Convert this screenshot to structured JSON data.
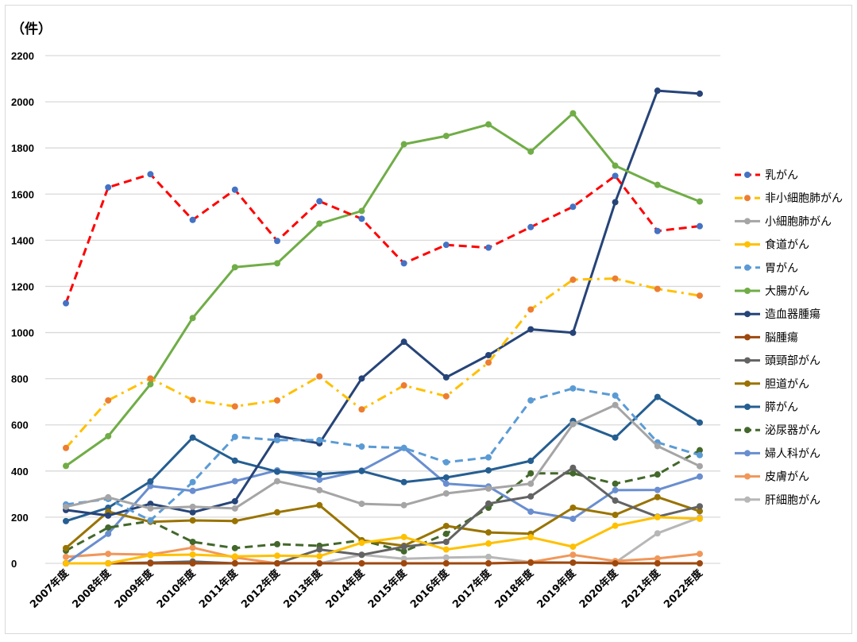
{
  "chart_data": {
    "type": "line",
    "title": "",
    "unit_label": "（件）",
    "xlabel": "",
    "ylabel": "件",
    "ylim": [
      0,
      2200
    ],
    "yticks": [
      0,
      200,
      400,
      600,
      800,
      1000,
      1200,
      1400,
      1600,
      1800,
      2000,
      2200
    ],
    "grid": true,
    "legend_position": "right",
    "categories": [
      "2007年度",
      "2008年度",
      "2009年度",
      "2010年度",
      "2011年度",
      "2012年度",
      "2013年度",
      "2014年度",
      "2015年度",
      "2016年度",
      "2017年度",
      "2018年度",
      "2019年度",
      "2020年度",
      "2021年度",
      "2022年度"
    ],
    "series": [
      {
        "name": "乳がん",
        "color": "#ff0000",
        "marker_color": "#4472c4",
        "dash": "dash",
        "values": [
          1127,
          1629,
          1686,
          1488,
          1619,
          1397,
          1569,
          1493,
          1300,
          1380,
          1368,
          1457,
          1545,
          1679,
          1440,
          1461
        ]
      },
      {
        "name": "非小細胞肺がん",
        "color": "#ffc000",
        "marker_color": "#ed7d31",
        "dash": "dashdot",
        "values": [
          500,
          706,
          801,
          708,
          680,
          706,
          810,
          667,
          771,
          724,
          870,
          1100,
          1229,
          1234,
          1189,
          1160
        ]
      },
      {
        "name": "小細胞肺がん",
        "color": "#a5a5a5",
        "marker_color": "#a5a5a5",
        "dash": "solid",
        "values": [
          245,
          286,
          238,
          245,
          238,
          356,
          317,
          258,
          252,
          303,
          324,
          345,
          603,
          686,
          508,
          421
        ]
      },
      {
        "name": "食道がん",
        "color": "#ffc000",
        "marker_color": "#ffc000",
        "dash": "solid",
        "values": [
          0,
          0,
          35,
          38,
          30,
          33,
          31,
          89,
          114,
          60,
          86,
          113,
          72,
          163,
          200,
          193
        ]
      },
      {
        "name": "胃がん",
        "color": "#5b9bd5",
        "marker_color": "#5b9bd5",
        "dash": "dash",
        "values": [
          255,
          279,
          186,
          352,
          548,
          534,
          534,
          506,
          500,
          438,
          459,
          706,
          758,
          727,
          524,
          469
        ]
      },
      {
        "name": "大腸がん",
        "color": "#70ad47",
        "marker_color": "#70ad47",
        "dash": "solid",
        "values": [
          422,
          551,
          776,
          1063,
          1283,
          1300,
          1472,
          1527,
          1816,
          1852,
          1902,
          1784,
          1950,
          1723,
          1640,
          1568
        ]
      },
      {
        "name": "造血器腫瘍",
        "color": "#264478",
        "marker_color": "#264478",
        "dash": "solid",
        "values": [
          231,
          207,
          258,
          221,
          269,
          552,
          520,
          801,
          960,
          806,
          902,
          1014,
          999,
          1565,
          2048,
          2035
        ]
      },
      {
        "name": "脳腫瘍",
        "color": "#9e480e",
        "marker_color": "#9e480e",
        "dash": "solid",
        "values": [
          0,
          0,
          0,
          0,
          0,
          0,
          0,
          0,
          0,
          0,
          0,
          3,
          3,
          0,
          0,
          0
        ]
      },
      {
        "name": "頭頸部がん",
        "color": "#636363",
        "marker_color": "#636363",
        "dash": "solid",
        "values": [
          0,
          0,
          3,
          8,
          0,
          0,
          60,
          37,
          72,
          93,
          259,
          290,
          414,
          272,
          202,
          247
        ]
      },
      {
        "name": "胆道がん",
        "color": "#997300",
        "marker_color": "#997300",
        "dash": "solid",
        "values": [
          66,
          224,
          180,
          186,
          183,
          221,
          252,
          100,
          76,
          162,
          134,
          128,
          241,
          210,
          287,
          226
        ]
      },
      {
        "name": "膵がん",
        "color": "#255e91",
        "marker_color": "#255e91",
        "dash": "solid",
        "values": [
          183,
          241,
          355,
          545,
          445,
          397,
          386,
          400,
          352,
          372,
          403,
          444,
          617,
          545,
          721,
          610
        ]
      },
      {
        "name": "泌尿器がん",
        "color": "#43682b",
        "marker_color": "#43682b",
        "dash": "dash",
        "values": [
          55,
          155,
          183,
          93,
          66,
          83,
          76,
          100,
          52,
          128,
          241,
          390,
          390,
          345,
          385,
          490
        ]
      },
      {
        "name": "婦人科がん",
        "color": "#698ed0",
        "marker_color": "#698ed0",
        "dash": "solid",
        "values": [
          0,
          128,
          335,
          314,
          356,
          403,
          362,
          402,
          500,
          345,
          333,
          224,
          193,
          317,
          318,
          376
        ]
      },
      {
        "name": "皮膚がん",
        "color": "#f1975a",
        "marker_color": "#f1975a",
        "dash": "solid",
        "values": [
          28,
          41,
          38,
          68,
          25,
          0,
          0,
          0,
          0,
          0,
          0,
          5,
          37,
          10,
          21,
          41
        ]
      },
      {
        "name": "肝細胞がん",
        "color": "#b7b7b7",
        "marker_color": "#b7b7b7",
        "dash": "solid",
        "values": [
          0,
          0,
          0,
          0,
          0,
          0,
          0,
          37,
          20,
          25,
          28,
          5,
          3,
          3,
          130,
          199
        ]
      }
    ]
  }
}
